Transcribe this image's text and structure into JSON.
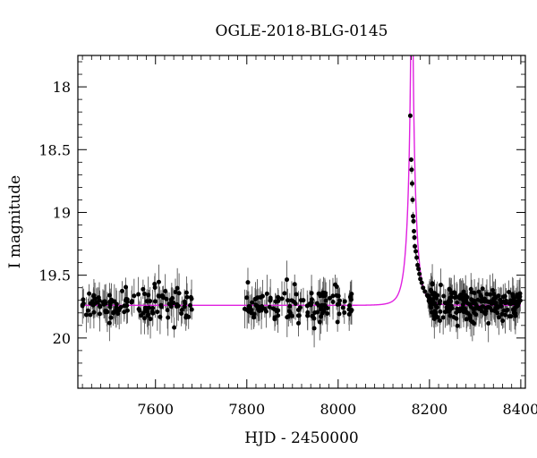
{
  "chart_data": {
    "type": "scatter",
    "title": "OGLE-2018-BLG-0145",
    "xlabel": "HJD - 2450000",
    "ylabel": "I magnitude",
    "xlim": [
      7430,
      8410
    ],
    "ylim": [
      20.4,
      17.75
    ],
    "y_inverted": true,
    "grid": false,
    "xticks": [
      7600,
      7800,
      8000,
      8200,
      8400
    ],
    "xtick_labels": [
      "7600",
      "7800",
      "8000",
      "8200",
      "8400"
    ],
    "yticks": [
      18,
      18.5,
      19,
      19.5,
      20
    ],
    "ytick_labels": [
      "18",
      "18.5",
      "19",
      "19.5",
      "20"
    ],
    "colors": {
      "data": "#000000",
      "errorbar": "#555555",
      "model": "#e020e0"
    },
    "model": {
      "type": "single-lens microlensing fit",
      "baseline_mag": 19.74,
      "t0": 8161.5,
      "tE": 17.0,
      "u0": 0.0095,
      "x_range": [
        7440,
        8400
      ]
    },
    "series": [
      {
        "name": "",
        "x_ranges": [
          [
            7440,
            7680
          ],
          [
            7795,
            8030
          ]
        ],
        "points_approx": 260,
        "scatter_mag": 0.13
      },
      {
        "name": "",
        "x": [
          8158,
          8160,
          8161,
          8162,
          8163,
          8164,
          8165,
          8166,
          8167,
          8168,
          8170,
          8172,
          8174,
          8176,
          8178,
          8180,
          8183,
          8186,
          8190,
          8195
        ],
        "y": [
          18.23,
          18.58,
          18.66,
          18.77,
          18.9,
          19.03,
          19.07,
          19.15,
          19.2,
          19.27,
          19.31,
          19.36,
          19.42,
          19.45,
          19.49,
          19.53,
          19.56,
          19.6,
          19.63,
          19.66
        ]
      },
      {
        "name": "",
        "x_ranges": [
          [
            8195,
            8400
          ]
        ],
        "points_approx": 220,
        "scatter_mag": 0.13
      }
    ]
  }
}
